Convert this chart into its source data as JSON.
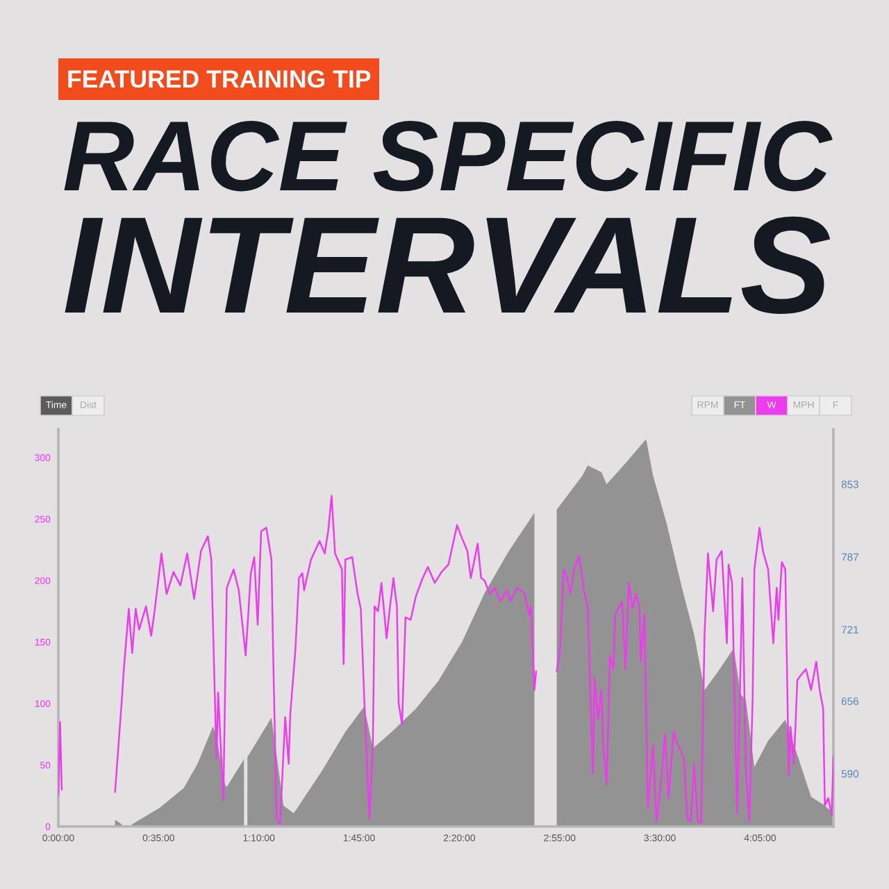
{
  "chart_data": {
    "type": "line",
    "title": "RACE SPECIFIC INTERVALS",
    "subtitle": "FEATURED TRAINING TIP",
    "annotations": [
      "Time",
      "Dist",
      "RPM",
      "FT",
      "W",
      "MPH",
      "F"
    ],
    "xlim": [
      0,
      4.51
    ],
    "xticks": [
      {
        "value": 0,
        "label": "0:00:00"
      },
      {
        "value": 0.5833,
        "label": "0:35:00"
      },
      {
        "value": 1.1667,
        "label": "1:10:00"
      },
      {
        "value": 1.75,
        "label": "1:45:00"
      },
      {
        "value": 2.3333,
        "label": "2:20:00"
      },
      {
        "value": 2.9167,
        "label": "2:55:00"
      },
      {
        "value": 3.5,
        "label": "3:30:00"
      },
      {
        "value": 4.0833,
        "label": "4:05:00"
      }
    ],
    "ylim": [
      0,
      323
    ],
    "yticks": [
      0,
      50,
      100,
      150,
      200,
      250,
      300
    ],
    "y2lim": [
      542,
      903
    ],
    "y2ticks": [
      590,
      656,
      721,
      787,
      853
    ],
    "series": [
      {
        "type": "area",
        "axis": "y2",
        "color": "#939393",
        "x": [
          0.33,
          0.36,
          0.38,
          0.41,
          0.45,
          0.59,
          0.73,
          0.81,
          0.9,
          0.92,
          0.97,
          0.98,
          1.08,
          1.09,
          1.1,
          1.24,
          1.31,
          1.37,
          1.54,
          1.67,
          1.78,
          1.83,
          1.94,
          2.08,
          2.21,
          2.35,
          2.48,
          2.62,
          2.77,
          2.83,
          2.9,
          3.05,
          3.08,
          3.16,
          3.19,
          3.3,
          3.42,
          3.46,
          3.54,
          3.63,
          3.7,
          3.76,
          3.84,
          3.93,
          3.97,
          4.0,
          4.05,
          4.13,
          4.23,
          4.3,
          4.38,
          4.46,
          4.51
        ],
        "values": [
          548,
          545,
          542,
          542,
          546,
          559,
          577,
          599,
          633,
          624,
          580,
          578,
          603,
          null,
          605,
          641,
          561,
          554,
          594,
          628,
          651,
          613,
          628,
          649,
          674,
          710,
          754,
          792,
          827,
          null,
          830,
          861,
          870,
          864,
          853,
          872,
          894,
          861,
          817,
          758,
          716,
          666,
          683,
          704,
          662,
          657,
          596,
          620,
          639,
          607,
          569,
          561,
          554
        ]
      },
      {
        "color": "#ee3bee",
        "x": [
          0.0,
          0.01,
          0.02,
          0.17,
          0.33,
          0.35,
          0.37,
          0.38,
          0.41,
          0.43,
          0.45,
          0.47,
          0.51,
          0.54,
          0.56,
          0.6,
          0.63,
          0.67,
          0.71,
          0.75,
          0.79,
          0.83,
          0.87,
          0.89,
          0.92,
          0.93,
          0.96,
          0.98,
          1.02,
          1.05,
          1.09,
          1.12,
          1.14,
          1.16,
          1.18,
          1.21,
          1.24,
          1.25,
          1.27,
          1.29,
          1.32,
          1.34,
          1.35,
          1.38,
          1.4,
          1.42,
          1.43,
          1.47,
          1.52,
          1.55,
          1.57,
          1.59,
          1.61,
          1.65,
          1.66,
          1.67,
          1.71,
          1.74,
          1.76,
          1.78,
          1.81,
          1.83,
          1.84,
          1.86,
          1.88,
          1.91,
          1.93,
          1.95,
          1.97,
          1.98,
          2.0,
          2.02,
          2.05,
          2.08,
          2.12,
          2.15,
          2.19,
          2.23,
          2.27,
          2.32,
          2.35,
          2.38,
          2.4,
          2.44,
          2.46,
          2.48,
          2.51,
          2.54,
          2.57,
          2.61,
          2.63,
          2.67,
          2.71,
          2.74,
          2.75,
          2.77,
          2.78,
          2.84,
          2.9,
          2.92,
          2.94,
          2.96,
          2.98,
          3.0,
          3.03,
          3.06,
          3.08,
          3.11,
          3.12,
          3.14,
          3.16,
          3.17,
          3.19,
          3.21,
          3.23,
          3.24,
          3.28,
          3.3,
          3.32,
          3.34,
          3.36,
          3.38,
          3.39,
          3.41,
          3.43,
          3.46,
          3.48,
          3.51,
          3.53,
          3.55,
          3.58,
          3.6,
          3.62,
          3.64,
          3.66,
          3.68,
          3.7,
          3.72,
          3.74,
          3.76,
          3.78,
          3.81,
          3.83,
          3.86,
          3.89,
          3.9,
          3.92,
          3.95,
          3.96,
          3.98,
          4.0,
          4.02,
          4.04,
          4.05,
          4.08,
          4.1,
          4.13,
          4.16,
          4.18,
          4.19,
          4.21,
          4.23,
          4.25,
          4.26,
          4.28,
          4.3,
          4.32,
          4.35,
          4.38,
          4.41,
          4.43,
          4.45,
          4.46,
          4.48,
          4.5,
          4.51
        ],
        "values": [
          25,
          85,
          30,
          null,
          28,
          66,
          104,
          126,
          177,
          141,
          177,
          160,
          179,
          155,
          175,
          222,
          189,
          207,
          196,
          222,
          185,
          224,
          236,
          217,
          55,
          109,
          21,
          194,
          209,
          192,
          139,
          206,
          219,
          164,
          240,
          243,
          217,
          141,
          6,
          2,
          89,
          51,
          92,
          145,
          202,
          206,
          192,
          217,
          232,
          222,
          240,
          269,
          222,
          209,
          132,
          217,
          219,
          190,
          177,
          104,
          6,
          66,
          179,
          175,
          198,
          153,
          179,
          202,
          179,
          100,
          83,
          170,
          168,
          187,
          202,
          211,
          198,
          207,
          213,
          245,
          234,
          224,
          202,
          230,
          202,
          200,
          189,
          194,
          183,
          192,
          183,
          194,
          190,
          172,
          179,
          111,
          126,
          null,
          126,
          145,
          209,
          202,
          189,
          209,
          220,
          190,
          179,
          43,
          121,
          87,
          111,
          66,
          34,
          139,
          128,
          172,
          183,
          128,
          198,
          177,
          189,
          179,
          134,
          173,
          15,
          66,
          4,
          40,
          75,
          23,
          77,
          68,
          62,
          55,
          6,
          4,
          51,
          4,
          3,
          156,
          222,
          175,
          217,
          224,
          149,
          213,
          198,
          11,
          70,
          202,
          47,
          4,
          104,
          209,
          243,
          224,
          209,
          149,
          194,
          168,
          215,
          209,
          42,
          81,
          51,
          119,
          123,
          128,
          111,
          134,
          111,
          96,
          17,
          23,
          9,
          57
        ]
      }
    ]
  }
}
